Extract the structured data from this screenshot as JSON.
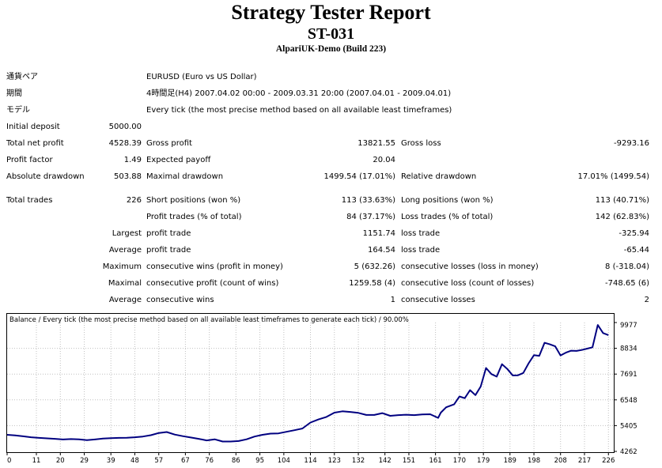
{
  "header": {
    "title": "Strategy Tester Report",
    "expert": "ST-031",
    "server": "AlpariUK-Demo (Build 223)"
  },
  "info": {
    "symbol_label": "通貨ペア",
    "symbol_value": "EURUSD (Euro vs US Dollar)",
    "period_label": "期間",
    "period_value": "4時間足(H4) 2007.04.02 00:00 - 2009.03.31 20:00 (2007.04.01 - 2009.04.01)",
    "model_label": "モデル",
    "model_value": "Every tick (the most precise method based on all available least timeframes)"
  },
  "stats": {
    "initial_deposit_label": "Initial deposit",
    "initial_deposit": "5000.00",
    "total_net_profit_label": "Total net profit",
    "total_net_profit": "4528.39",
    "gross_profit_label": "Gross profit",
    "gross_profit": "13821.55",
    "gross_loss_label": "Gross loss",
    "gross_loss": "-9293.16",
    "profit_factor_label": "Profit factor",
    "profit_factor": "1.49",
    "expected_payoff_label": "Expected payoff",
    "expected_payoff": "20.04",
    "absolute_drawdown_label": "Absolute drawdown",
    "absolute_drawdown": "503.88",
    "maximal_drawdown_label": "Maximal drawdown",
    "maximal_drawdown": "1499.54 (17.01%)",
    "relative_drawdown_label": "Relative drawdown",
    "relative_drawdown": "17.01% (1499.54)",
    "total_trades_label": "Total trades",
    "total_trades": "226",
    "short_positions_label": "Short positions (won %)",
    "short_positions": "113 (33.63%)",
    "long_positions_label": "Long positions (won %)",
    "long_positions": "113 (40.71%)",
    "profit_trades_label": "Profit trades (% of total)",
    "profit_trades": "84 (37.17%)",
    "loss_trades_label": "Loss trades (% of total)",
    "loss_trades": "142 (62.83%)",
    "largest_label": "Largest",
    "largest_profit_label": "profit trade",
    "largest_profit": "1151.74",
    "largest_loss_label": "loss trade",
    "largest_loss": "-325.94",
    "average_label": "Average",
    "average_profit_label": "profit trade",
    "average_profit": "164.54",
    "average_loss_label": "loss trade",
    "average_loss": "-65.44",
    "maximum_label": "Maximum",
    "max_consec_wins_label": "consecutive wins (profit in money)",
    "max_consec_wins": "5 (632.26)",
    "max_consec_losses_label": "consecutive losses (loss in money)",
    "max_consec_losses": "8 (-318.04)",
    "maximal_label": "Maximal",
    "maximal_consec_profit_label": "consecutive profit (count of wins)",
    "maximal_consec_profit": "1259.58 (4)",
    "maximal_consec_loss_label": "consecutive loss (count of losses)",
    "maximal_consec_loss": "-748.65 (6)",
    "average2_label": "Average",
    "avg_consec_wins_label": "consecutive wins",
    "avg_consec_wins": "1",
    "avg_consec_losses_label": "consecutive losses",
    "avg_consec_losses": "2"
  },
  "chart_data": {
    "type": "line",
    "title": "Balance / Every tick (the most precise method based on all available least timeframes to generate each tick) / 90.00%",
    "x_ticks": [
      "0",
      "11",
      "20",
      "29",
      "39",
      "48",
      "57",
      "67",
      "76",
      "86",
      "95",
      "104",
      "114",
      "123",
      "132",
      "142",
      "151",
      "161",
      "170",
      "179",
      "189",
      "198",
      "208",
      "217",
      "226"
    ],
    "y_ticks": [
      "9977",
      "8834",
      "7691",
      "6548",
      "5405",
      "4262"
    ],
    "xlim": [
      0,
      228
    ],
    "ylim": [
      4262,
      9977
    ],
    "line_color": "#000080",
    "grid": true,
    "series": [
      {
        "x": [
          0,
          3,
          6,
          9,
          12,
          15,
          18,
          21,
          24,
          27,
          30,
          33,
          36,
          39,
          42,
          45,
          48,
          51,
          54,
          57,
          60,
          63,
          66,
          69,
          72,
          75,
          78,
          81,
          84,
          87,
          90,
          93,
          96,
          99,
          102,
          105,
          108,
          111,
          114,
          117,
          120,
          123,
          126,
          129,
          132,
          135,
          138,
          141,
          144,
          147,
          150,
          153,
          156,
          159,
          162,
          163,
          165,
          168,
          170,
          172,
          174,
          176,
          178,
          180,
          182,
          184,
          186,
          188,
          190,
          192,
          194,
          196,
          198,
          200,
          202,
          204,
          206,
          208,
          210,
          212,
          214,
          216,
          218,
          220,
          222,
          224,
          226
        ],
        "y": [
          5000,
          4970,
          4930,
          4890,
          4860,
          4840,
          4820,
          4790,
          4810,
          4800,
          4760,
          4790,
          4830,
          4850,
          4860,
          4870,
          4890,
          4920,
          4980,
          5080,
          5120,
          5010,
          4940,
          4880,
          4820,
          4750,
          4800,
          4700,
          4700,
          4720,
          4800,
          4920,
          5000,
          5050,
          5060,
          5130,
          5200,
          5280,
          5540,
          5680,
          5790,
          5980,
          6040,
          6010,
          5970,
          5880,
          5880,
          5960,
          5840,
          5870,
          5890,
          5870,
          5900,
          5910,
          5750,
          5980,
          6220,
          6350,
          6700,
          6620,
          6980,
          6760,
          7140,
          7960,
          7690,
          7580,
          8130,
          7920,
          7630,
          7640,
          7740,
          8170,
          8530,
          8500,
          9080,
          9010,
          8920,
          8520,
          8640,
          8730,
          8720,
          8760,
          8820,
          8880,
          9870,
          9510,
          9420
        ]
      }
    ]
  }
}
